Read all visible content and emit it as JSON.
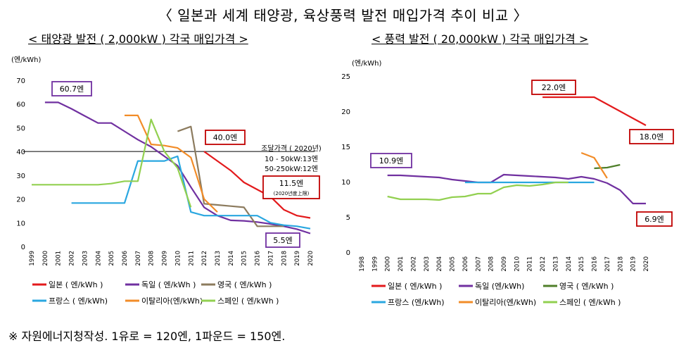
{
  "header": {
    "title": "〈 일본과 세계 태양광, 육상풍력 발전 매입가격 추이 비교 〉",
    "footnote": "※ 자원에너지청작성. 1유로 = 120엔, 1파운드 = 150엔."
  },
  "chart_data": [
    {
      "type": "line",
      "title": "< 태양광 발전 ( 2,000kW ) 각국 매입가격 >",
      "ylabel": "(엔/kWh)",
      "xlabel": "",
      "ylim": [
        0,
        70
      ],
      "yticks": [
        0,
        10,
        20,
        30,
        40,
        50,
        60,
        70
      ],
      "x": [
        "1999",
        "2000",
        "2001",
        "2002",
        "2003",
        "2004",
        "2005",
        "2006",
        "2007",
        "2008",
        "2009",
        "2010",
        "2011",
        "2012",
        "2013",
        "2014",
        "2015",
        "2016",
        "2017",
        "2018",
        "2019",
        "2020"
      ],
      "grid": false,
      "legend_position": "bottom",
      "series": [
        {
          "name": "일본 ( 엔/kWh )",
          "color": "#e31a1c",
          "points": [
            [
              "2012",
              40
            ],
            [
              "2013",
              36
            ],
            [
              "2014",
              32
            ],
            [
              "2015",
              27
            ],
            [
              "2016",
              24
            ],
            [
              "2017",
              21
            ],
            [
              "2018",
              15.5
            ],
            [
              "2019",
              13
            ],
            [
              "2020",
              12
            ]
          ]
        },
        {
          "name": "독일 ( 엔/kWh )",
          "color": "#7030a0",
          "points": [
            [
              "2000",
              60.7
            ],
            [
              "2001",
              60.7
            ],
            [
              "2002",
              58
            ],
            [
              "2003",
              55
            ],
            [
              "2004",
              52
            ],
            [
              "2005",
              52
            ],
            [
              "2006",
              48.5
            ],
            [
              "2007",
              45
            ],
            [
              "2008",
              42
            ],
            [
              "2009",
              38
            ],
            [
              "2010",
              34
            ],
            [
              "2011",
              25
            ],
            [
              "2012",
              16.5
            ],
            [
              "2013",
              13
            ],
            [
              "2014",
              11
            ],
            [
              "2015",
              10.8
            ],
            [
              "2016",
              10.3
            ],
            [
              "2017",
              9.5
            ],
            [
              "2018",
              8.5
            ],
            [
              "2019",
              7.3
            ],
            [
              "2020",
              5.5
            ]
          ]
        },
        {
          "name": "영국 ( 엔/kWh )",
          "color": "#8c7b5e",
          "points": [
            [
              "2010",
              48.5
            ],
            [
              "2011",
              50.5
            ],
            [
              "2012",
              18
            ],
            [
              "2013",
              17.5
            ],
            [
              "2014",
              17
            ],
            [
              "2015",
              16.5
            ],
            [
              "2016",
              8.5
            ],
            [
              "2017",
              8.5
            ],
            [
              "2018",
              8.5
            ]
          ]
        },
        {
          "name": "프랑스 ( 엔/kWh)",
          "color": "#2aa7e0",
          "points": [
            [
              "2002",
              18.3
            ],
            [
              "2003",
              18.3
            ],
            [
              "2004",
              18.3
            ],
            [
              "2005",
              18.3
            ],
            [
              "2006",
              18.3
            ],
            [
              "2007",
              36
            ],
            [
              "2008",
              36
            ],
            [
              "2009",
              36
            ],
            [
              "2010",
              38
            ],
            [
              "2011",
              14.5
            ],
            [
              "2012",
              13
            ],
            [
              "2013",
              13
            ],
            [
              "2014",
              13
            ],
            [
              "2015",
              13
            ],
            [
              "2016",
              13
            ],
            [
              "2017",
              10
            ],
            [
              "2018",
              9
            ],
            [
              "2019",
              8.5
            ],
            [
              "2020",
              7.5
            ]
          ]
        },
        {
          "name": "이탈리아(엔/kWh)",
          "color": "#f28c28",
          "points": [
            [
              "2006",
              55.2
            ],
            [
              "2007",
              55.2
            ],
            [
              "2008",
              43
            ],
            [
              "2009",
              42.5
            ],
            [
              "2010",
              41.5
            ],
            [
              "2011",
              37.5
            ],
            [
              "2012",
              20
            ],
            [
              "2013",
              14.5
            ]
          ]
        },
        {
          "name": "스페인 ( 엔/kWh )",
          "color": "#92d050",
          "points": [
            [
              "1999",
              26
            ],
            [
              "2000",
              26
            ],
            [
              "2001",
              26
            ],
            [
              "2002",
              26
            ],
            [
              "2003",
              26
            ],
            [
              "2004",
              26
            ],
            [
              "2005",
              26.5
            ],
            [
              "2006",
              27.5
            ],
            [
              "2007",
              27.5
            ],
            [
              "2008",
              53.5
            ],
            [
              "2009",
              40
            ],
            [
              "2010",
              33
            ],
            [
              "2011",
              16.5
            ]
          ]
        }
      ],
      "reference_line": {
        "y": 40
      },
      "annotations": [
        {
          "text": "60.7엔",
          "boxed": true,
          "box_color": "#7030a0"
        },
        {
          "text": "40.0엔",
          "boxed": true,
          "box_color": "#c00000"
        },
        {
          "text": "조달가격 ( 2020년)",
          "boxed": false
        },
        {
          "text": "10 - 50kW:13엔",
          "boxed": false
        },
        {
          "text": "50-250kW:12엔",
          "boxed": false
        },
        {
          "text": "11.5엔",
          "boxed": true,
          "box_color": "#c00000"
        },
        {
          "text": "(2020년度上限)",
          "boxed": false
        },
        {
          "text": "5.5엔",
          "boxed": true,
          "box_color": "#7030a0"
        }
      ]
    },
    {
      "type": "line",
      "title": "< 풍력 발전 ( 20,000kW ) 각국 매입가격 >",
      "ylabel": "(엔/kWh)",
      "xlabel": "",
      "ylim": [
        0,
        25
      ],
      "yticks": [
        0,
        5,
        10,
        15,
        20,
        25
      ],
      "x": [
        "1998",
        "1999",
        "2000",
        "2001",
        "2002",
        "2003",
        "2004",
        "2005",
        "2006",
        "2007",
        "2008",
        "2009",
        "2010",
        "2011",
        "2012",
        "2013",
        "2014",
        "2015",
        "2016",
        "2017",
        "2018",
        "2019",
        "2020"
      ],
      "grid": false,
      "legend_position": "bottom",
      "series": [
        {
          "name": "일본 ( 엔/kWh )",
          "color": "#e31a1c",
          "points": [
            [
              "2012",
              22
            ],
            [
              "2013",
              22
            ],
            [
              "2014",
              22
            ],
            [
              "2015",
              22
            ],
            [
              "2016",
              22
            ],
            [
              "2017",
              21
            ],
            [
              "2018",
              20
            ],
            [
              "2019",
              19
            ],
            [
              "2020",
              18
            ]
          ]
        },
        {
          "name": "독일 (엔/kWh)",
          "color": "#7030a0",
          "points": [
            [
              "2000",
              10.9
            ],
            [
              "2001",
              10.9
            ],
            [
              "2002",
              10.8
            ],
            [
              "2003",
              10.7
            ],
            [
              "2004",
              10.6
            ],
            [
              "2005",
              10.3
            ],
            [
              "2006",
              10.1
            ],
            [
              "2007",
              9.9
            ],
            [
              "2008",
              9.9
            ],
            [
              "2009",
              11
            ],
            [
              "2010",
              10.9
            ],
            [
              "2011",
              10.8
            ],
            [
              "2012",
              10.7
            ],
            [
              "2013",
              10.6
            ],
            [
              "2014",
              10.4
            ],
            [
              "2015",
              10.7
            ],
            [
              "2016",
              10.4
            ],
            [
              "2017",
              9.8
            ],
            [
              "2018",
              8.8
            ],
            [
              "2019",
              6.9
            ],
            [
              "2020",
              6.9
            ]
          ]
        },
        {
          "name": "영국 ( 엔/kWh )",
          "color": "#4f7f2a",
          "points": [
            [
              "2016",
              11.9
            ],
            [
              "2017",
              12
            ],
            [
              "2018",
              12.4
            ]
          ]
        },
        {
          "name": "프랑스 (엔/kWh)",
          "color": "#2aa7e0",
          "points": [
            [
              "2006",
              9.9
            ],
            [
              "2007",
              9.9
            ],
            [
              "2008",
              9.9
            ],
            [
              "2009",
              9.9
            ],
            [
              "2010",
              9.9
            ],
            [
              "2011",
              9.9
            ],
            [
              "2012",
              9.9
            ],
            [
              "2013",
              9.9
            ],
            [
              "2014",
              9.9
            ],
            [
              "2015",
              9.9
            ],
            [
              "2016",
              9.9
            ]
          ]
        },
        {
          "name": "이탈리아(엔/kWh)",
          "color": "#f28c28",
          "points": [
            [
              "2015",
              14.1
            ],
            [
              "2016",
              13.4
            ],
            [
              "2017",
              10.5
            ]
          ]
        },
        {
          "name": "스페인 ( 엔/kWh )",
          "color": "#92d050",
          "points": [
            [
              "2000",
              7.9
            ],
            [
              "2001",
              7.5
            ],
            [
              "2002",
              7.5
            ],
            [
              "2003",
              7.5
            ],
            [
              "2004",
              7.4
            ],
            [
              "2005",
              7.8
            ],
            [
              "2006",
              7.9
            ],
            [
              "2007",
              8.3
            ],
            [
              "2008",
              8.3
            ],
            [
              "2009",
              9.2
            ],
            [
              "2010",
              9.5
            ],
            [
              "2011",
              9.4
            ],
            [
              "2012",
              9.6
            ],
            [
              "2013",
              9.9
            ],
            [
              "2014",
              9.9
            ]
          ]
        }
      ],
      "annotations": [
        {
          "text": "22.0엔",
          "boxed": true,
          "box_color": "#c00000"
        },
        {
          "text": "18.0엔",
          "boxed": true,
          "box_color": "#c00000"
        },
        {
          "text": "10.9엔",
          "boxed": true,
          "box_color": "#7030a0"
        },
        {
          "text": "6.9엔",
          "boxed": true,
          "box_color": "#c00000"
        }
      ]
    }
  ]
}
